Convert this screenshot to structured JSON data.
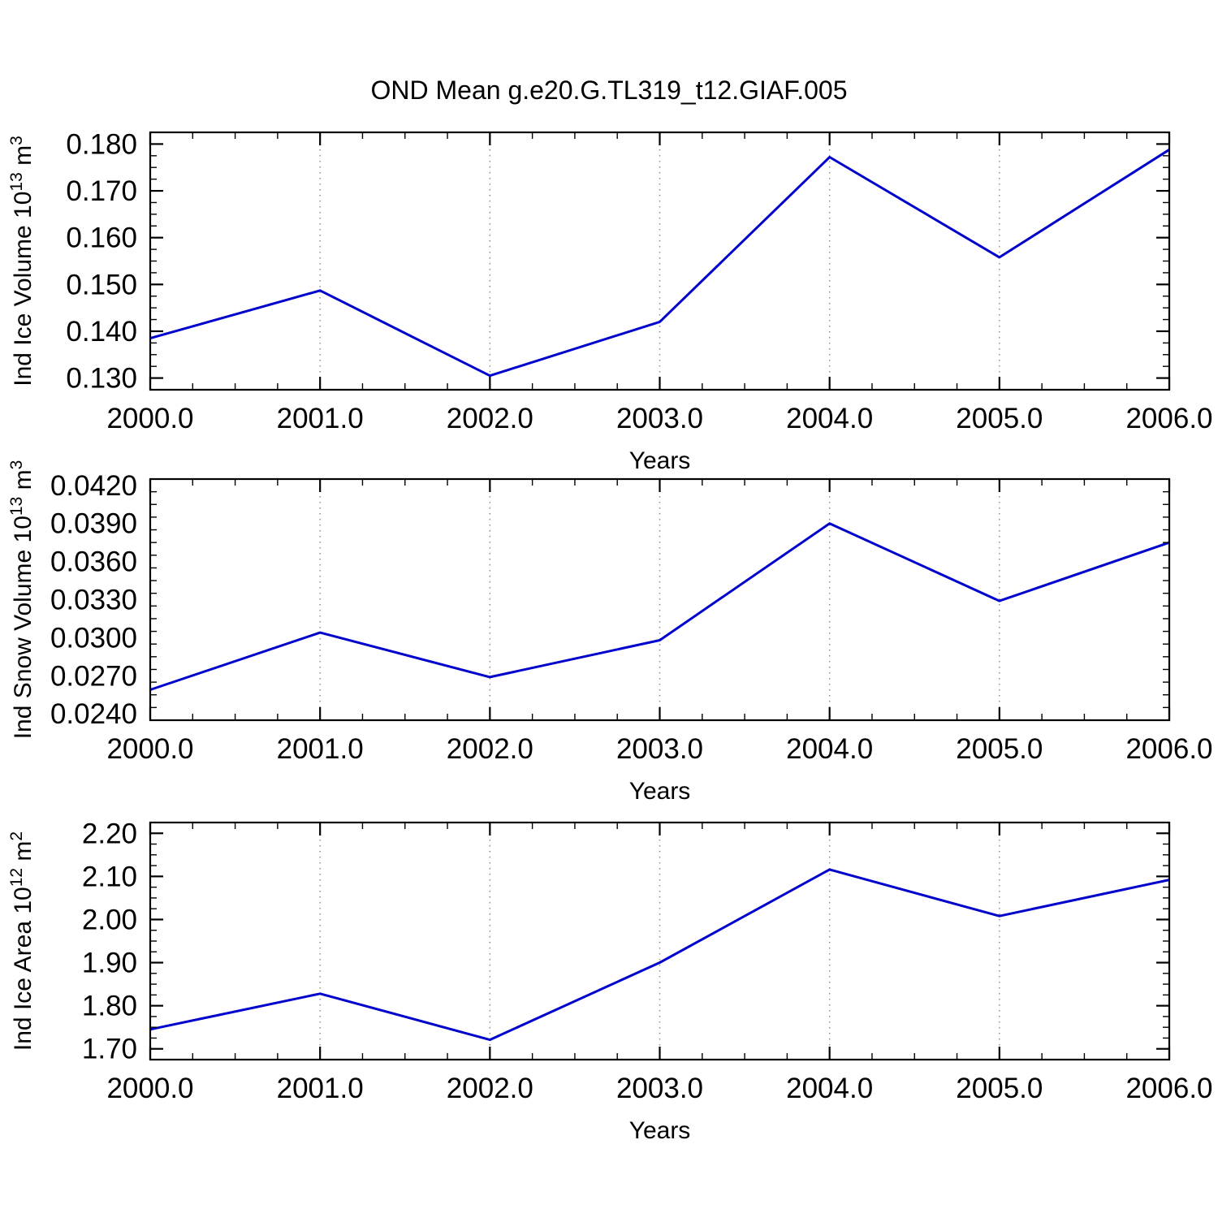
{
  "title": "OND Mean g.e20.G.TL319_t12.GIAF.005",
  "colors": {
    "line": "#0000cc",
    "grid": "#888888",
    "frame": "#000000",
    "text": "#000000"
  },
  "chart_data": [
    {
      "type": "line",
      "name": "ind-ice-volume",
      "ylabel_parts": [
        {
          "t": "Ind Ice Volume 10"
        },
        {
          "t": "13",
          "sup": true
        },
        {
          "t": " m"
        },
        {
          "t": "3",
          "sup": true
        }
      ],
      "ylabel_plain": "Ind Ice Volume 10^13 m^3",
      "xlabel": "Years",
      "x": [
        2000,
        2001,
        2002,
        2003,
        2004,
        2005,
        2006
      ],
      "values": [
        0.1385,
        0.1487,
        0.1305,
        0.142,
        0.1772,
        0.1558,
        0.1788
      ],
      "xlim": [
        2000,
        2006
      ],
      "ylim": [
        0.1275,
        0.1825
      ],
      "xtick_values": [
        2000,
        2001,
        2002,
        2003,
        2004,
        2005,
        2006
      ],
      "xtick_labels": [
        "2000.0",
        "2001.0",
        "2002.0",
        "2003.0",
        "2004.0",
        "2005.0",
        "2006.0"
      ],
      "ytick_values": [
        0.13,
        0.14,
        0.15,
        0.16,
        0.17,
        0.18
      ],
      "ytick_labels": [
        "0.130",
        "0.140",
        "0.150",
        "0.160",
        "0.170",
        "0.180"
      ],
      "x_minor_step": 0.25,
      "y_minor_step": 0.0025,
      "grid_x": [
        2001,
        2002,
        2003,
        2004,
        2005
      ],
      "grid_on": true,
      "legend": "none"
    },
    {
      "type": "line",
      "name": "ind-snow-volume",
      "ylabel_parts": [
        {
          "t": "Ind Snow Volume 10"
        },
        {
          "t": "13",
          "sup": true
        },
        {
          "t": " m"
        },
        {
          "t": "3",
          "sup": true
        }
      ],
      "ylabel_plain": "Ind Snow Volume 10^13 m^3",
      "xlabel": "Years",
      "x": [
        2000,
        2001,
        2002,
        2003,
        2004,
        2005,
        2006
      ],
      "values": [
        0.0259,
        0.0304,
        0.0269,
        0.0298,
        0.039,
        0.0329,
        0.0375
      ],
      "xlim": [
        2000,
        2006
      ],
      "ylim": [
        0.0235,
        0.0425
      ],
      "xtick_values": [
        2000,
        2001,
        2002,
        2003,
        2004,
        2005,
        2006
      ],
      "xtick_labels": [
        "2000.0",
        "2001.0",
        "2002.0",
        "2003.0",
        "2004.0",
        "2005.0",
        "2006.0"
      ],
      "ytick_values": [
        0.024,
        0.027,
        0.03,
        0.033,
        0.036,
        0.039,
        0.042
      ],
      "ytick_labels": [
        "0.0240",
        "0.0270",
        "0.0300",
        "0.0330",
        "0.0360",
        "0.0390",
        "0.0420"
      ],
      "x_minor_step": 0.25,
      "y_minor_step": 0.001,
      "grid_x": [
        2001,
        2002,
        2003,
        2004,
        2005
      ],
      "grid_on": true,
      "legend": "none"
    },
    {
      "type": "line",
      "name": "ind-ice-area",
      "ylabel_parts": [
        {
          "t": "Ind Ice Area 10"
        },
        {
          "t": "12",
          "sup": true
        },
        {
          "t": " m"
        },
        {
          "t": "2",
          "sup": true
        }
      ],
      "ylabel_plain": "Ind Ice Area 10^12 m^2",
      "xlabel": "Years",
      "x": [
        2000,
        2001,
        2002,
        2003,
        2004,
        2005,
        2006
      ],
      "values": [
        1.745,
        1.828,
        1.721,
        1.9,
        2.116,
        2.008,
        2.092
      ],
      "xlim": [
        2000,
        2006
      ],
      "ylim": [
        1.675,
        2.225
      ],
      "xtick_values": [
        2000,
        2001,
        2002,
        2003,
        2004,
        2005,
        2006
      ],
      "xtick_labels": [
        "2000.0",
        "2001.0",
        "2002.0",
        "2003.0",
        "2004.0",
        "2005.0",
        "2006.0"
      ],
      "ytick_values": [
        1.7,
        1.8,
        1.9,
        2.0,
        2.1,
        2.2
      ],
      "ytick_labels": [
        "1.70",
        "1.80",
        "1.90",
        "2.00",
        "2.10",
        "2.20"
      ],
      "x_minor_step": 0.25,
      "y_minor_step": 0.025,
      "grid_x": [
        2001,
        2002,
        2003,
        2004,
        2005
      ],
      "grid_on": true,
      "legend": "none"
    }
  ]
}
